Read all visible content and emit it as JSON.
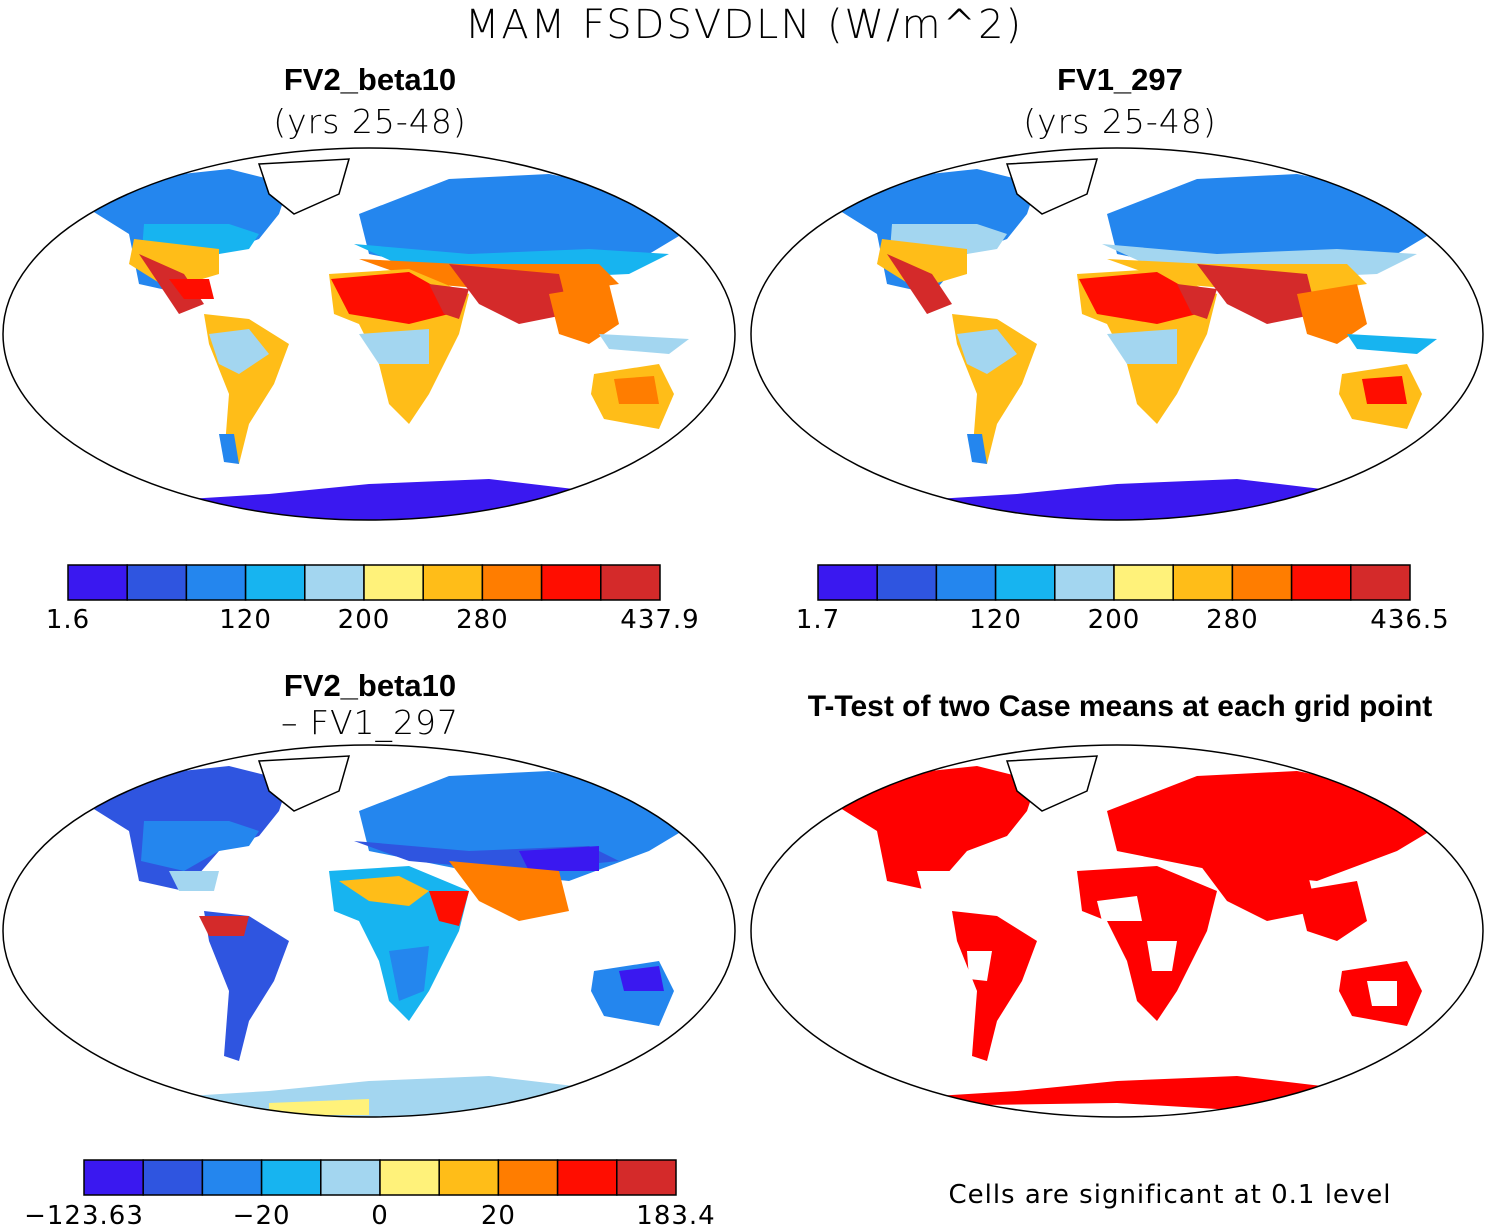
{
  "figure_title": "MAM FSDSVDLN (W/m^2)",
  "chart_data": [
    {
      "type": "heatmap",
      "title": "FV2_beta10",
      "subtitle": "(yrs 25-48)",
      "colorbar": {
        "labels": [
          "1.6",
          "120",
          "200",
          "280",
          "437.9"
        ],
        "label_bins": [
          0,
          3,
          5,
          7,
          10
        ],
        "colors": [
          "#3a18f0",
          "#2f55e0",
          "#2486ee",
          "#17b4f0",
          "#a3d6f0",
          "#fff27a",
          "#ffbd18",
          "#ff7d00",
          "#ff0d00",
          "#d42a2a"
        ]
      }
    },
    {
      "type": "heatmap",
      "title": "FV1_297",
      "subtitle": "(yrs 25-48)",
      "colorbar": {
        "labels": [
          "1.7",
          "120",
          "200",
          "280",
          "436.5"
        ],
        "label_bins": [
          0,
          3,
          5,
          7,
          10
        ],
        "colors": [
          "#3a18f0",
          "#2f55e0",
          "#2486ee",
          "#17b4f0",
          "#a3d6f0",
          "#fff27a",
          "#ffbd18",
          "#ff7d00",
          "#ff0d00",
          "#d42a2a"
        ]
      }
    },
    {
      "type": "heatmap",
      "title": "FV2_beta10",
      "subtitle": "– FV1_297",
      "colorbar": {
        "labels": [
          "−123.63",
          "−20",
          "0",
          "20",
          "183.4"
        ],
        "label_bins": [
          0,
          3,
          5,
          7,
          10
        ],
        "colors": [
          "#3a18f0",
          "#2f55e0",
          "#2486ee",
          "#17b4f0",
          "#a3d6f0",
          "#fff27a",
          "#ffbd18",
          "#ff7d00",
          "#ff0d00",
          "#d42a2a"
        ]
      }
    },
    {
      "type": "heatmap",
      "title": "T-Test of two Case means at each grid point",
      "footnote": "Cells are significant at 0.1 level",
      "significant_color": "#ff0000"
    }
  ],
  "colors": {
    "land_mask": "#ffffff",
    "outline": "#000000"
  }
}
